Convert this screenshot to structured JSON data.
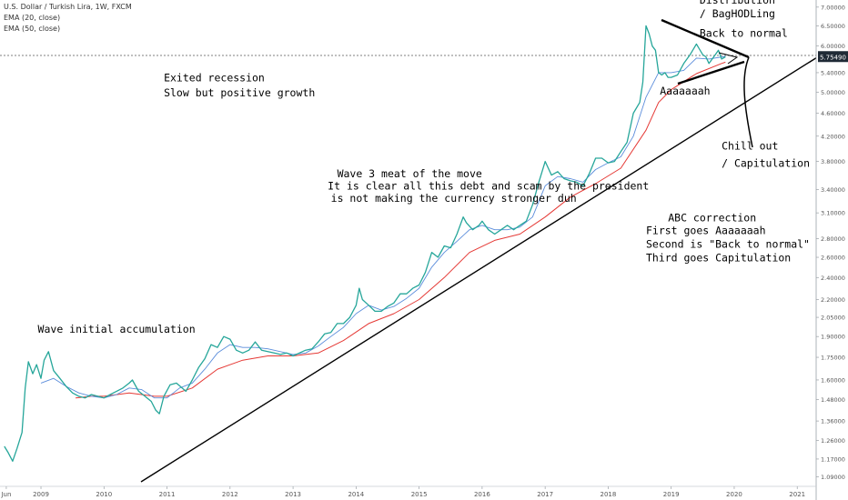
{
  "header": {
    "symbol": "U.S. Dollar / Turkish Lira, 1W, FXCM",
    "ema20": "EMA (20, close)",
    "ema50": "EMA (50, close)"
  },
  "colors": {
    "price": "#26a69a",
    "ema20": "#5b8ddb",
    "ema50": "#e53935",
    "trendline": "#000000",
    "annotation": "#000000"
  },
  "chart_data": {
    "type": "line",
    "title": "U.S. Dollar / Turkish Lira, 1W, FXCM",
    "y_scale": "log",
    "ylim": [
      1.05,
      7.2
    ],
    "xlim": [
      2008.35,
      2021.3
    ],
    "x_ticks": [
      {
        "x": 2008.45,
        "label": "Jun"
      },
      {
        "x": 2009.0,
        "label": "2009"
      },
      {
        "x": 2010.0,
        "label": "2010"
      },
      {
        "x": 2011.0,
        "label": "2011"
      },
      {
        "x": 2012.0,
        "label": "2012"
      },
      {
        "x": 2013.0,
        "label": "2013"
      },
      {
        "x": 2014.0,
        "label": "2014"
      },
      {
        "x": 2015.0,
        "label": "2015"
      },
      {
        "x": 2016.0,
        "label": "2016"
      },
      {
        "x": 2017.0,
        "label": "2017"
      },
      {
        "x": 2018.0,
        "label": "2018"
      },
      {
        "x": 2019.0,
        "label": "2019"
      },
      {
        "x": 2020.0,
        "label": "2020"
      },
      {
        "x": 2021.0,
        "label": "2021"
      }
    ],
    "y_ticks": [
      "7.00000",
      "6.50000",
      "6.00000",
      "5.75490",
      "5.40000",
      "5.00000",
      "4.60000",
      "4.20000",
      "3.80000",
      "3.40000",
      "3.10000",
      "2.80000",
      "2.60000",
      "2.40000",
      "2.20000",
      "2.05000",
      "1.90000",
      "1.75000",
      "1.60000",
      "1.48000",
      "1.36000",
      "1.26000",
      "1.17000",
      "1.09000"
    ],
    "last_price": "5.75490",
    "series": [
      {
        "name": "U.S. Dollar / Turkish Lira",
        "key": "price",
        "points": [
          [
            2008.42,
            1.23
          ],
          [
            2008.48,
            1.2
          ],
          [
            2008.55,
            1.16
          ],
          [
            2008.62,
            1.22
          ],
          [
            2008.7,
            1.3
          ],
          [
            2008.75,
            1.55
          ],
          [
            2008.8,
            1.72
          ],
          [
            2008.87,
            1.64
          ],
          [
            2008.93,
            1.7
          ],
          [
            2009.0,
            1.61
          ],
          [
            2009.05,
            1.73
          ],
          [
            2009.12,
            1.79
          ],
          [
            2009.2,
            1.66
          ],
          [
            2009.3,
            1.61
          ],
          [
            2009.4,
            1.56
          ],
          [
            2009.5,
            1.52
          ],
          [
            2009.6,
            1.5
          ],
          [
            2009.7,
            1.49
          ],
          [
            2009.8,
            1.51
          ],
          [
            2009.9,
            1.5
          ],
          [
            2010.0,
            1.49
          ],
          [
            2010.1,
            1.51
          ],
          [
            2010.2,
            1.53
          ],
          [
            2010.3,
            1.55
          ],
          [
            2010.4,
            1.58
          ],
          [
            2010.45,
            1.6
          ],
          [
            2010.55,
            1.53
          ],
          [
            2010.65,
            1.5
          ],
          [
            2010.75,
            1.47
          ],
          [
            2010.82,
            1.42
          ],
          [
            2010.88,
            1.4
          ],
          [
            2010.95,
            1.5
          ],
          [
            2011.05,
            1.57
          ],
          [
            2011.15,
            1.58
          ],
          [
            2011.3,
            1.53
          ],
          [
            2011.4,
            1.6
          ],
          [
            2011.5,
            1.68
          ],
          [
            2011.6,
            1.74
          ],
          [
            2011.7,
            1.84
          ],
          [
            2011.8,
            1.82
          ],
          [
            2011.9,
            1.9
          ],
          [
            2012.0,
            1.88
          ],
          [
            2012.1,
            1.8
          ],
          [
            2012.2,
            1.78
          ],
          [
            2012.3,
            1.8
          ],
          [
            2012.4,
            1.86
          ],
          [
            2012.5,
            1.8
          ],
          [
            2012.6,
            1.79
          ],
          [
            2012.7,
            1.78
          ],
          [
            2012.8,
            1.77
          ],
          [
            2012.9,
            1.78
          ],
          [
            2013.0,
            1.76
          ],
          [
            2013.1,
            1.78
          ],
          [
            2013.2,
            1.8
          ],
          [
            2013.3,
            1.81
          ],
          [
            2013.4,
            1.86
          ],
          [
            2013.5,
            1.92
          ],
          [
            2013.6,
            1.93
          ],
          [
            2013.7,
            2.0
          ],
          [
            2013.8,
            2.0
          ],
          [
            2013.9,
            2.05
          ],
          [
            2014.0,
            2.15
          ],
          [
            2014.05,
            2.3
          ],
          [
            2014.1,
            2.2
          ],
          [
            2014.2,
            2.15
          ],
          [
            2014.3,
            2.1
          ],
          [
            2014.4,
            2.1
          ],
          [
            2014.5,
            2.14
          ],
          [
            2014.6,
            2.17
          ],
          [
            2014.7,
            2.25
          ],
          [
            2014.8,
            2.25
          ],
          [
            2014.9,
            2.3
          ],
          [
            2015.0,
            2.33
          ],
          [
            2015.1,
            2.45
          ],
          [
            2015.2,
            2.65
          ],
          [
            2015.3,
            2.6
          ],
          [
            2015.4,
            2.72
          ],
          [
            2015.5,
            2.7
          ],
          [
            2015.6,
            2.85
          ],
          [
            2015.7,
            3.05
          ],
          [
            2015.75,
            2.98
          ],
          [
            2015.85,
            2.9
          ],
          [
            2015.95,
            2.95
          ],
          [
            2016.0,
            3.0
          ],
          [
            2016.1,
            2.9
          ],
          [
            2016.2,
            2.85
          ],
          [
            2016.3,
            2.9
          ],
          [
            2016.4,
            2.95
          ],
          [
            2016.5,
            2.9
          ],
          [
            2016.6,
            2.95
          ],
          [
            2016.7,
            3.0
          ],
          [
            2016.8,
            3.2
          ],
          [
            2016.9,
            3.5
          ],
          [
            2017.0,
            3.8
          ],
          [
            2017.05,
            3.7
          ],
          [
            2017.1,
            3.6
          ],
          [
            2017.2,
            3.65
          ],
          [
            2017.3,
            3.55
          ],
          [
            2017.4,
            3.52
          ],
          [
            2017.5,
            3.5
          ],
          [
            2017.6,
            3.45
          ],
          [
            2017.7,
            3.62
          ],
          [
            2017.8,
            3.85
          ],
          [
            2017.9,
            3.85
          ],
          [
            2018.0,
            3.78
          ],
          [
            2018.1,
            3.8
          ],
          [
            2018.2,
            3.95
          ],
          [
            2018.3,
            4.1
          ],
          [
            2018.4,
            4.6
          ],
          [
            2018.5,
            4.8
          ],
          [
            2018.55,
            5.2
          ],
          [
            2018.6,
            6.5
          ],
          [
            2018.65,
            6.3
          ],
          [
            2018.7,
            6.0
          ],
          [
            2018.75,
            5.9
          ],
          [
            2018.8,
            5.4
          ],
          [
            2018.85,
            5.35
          ],
          [
            2018.9,
            5.4
          ],
          [
            2018.95,
            5.3
          ],
          [
            2019.0,
            5.3
          ],
          [
            2019.1,
            5.35
          ],
          [
            2019.2,
            5.6
          ],
          [
            2019.3,
            5.8
          ],
          [
            2019.4,
            6.05
          ],
          [
            2019.5,
            5.8
          ],
          [
            2019.55,
            5.75
          ],
          [
            2019.6,
            5.6
          ],
          [
            2019.7,
            5.8
          ],
          [
            2019.75,
            5.9
          ],
          [
            2019.8,
            5.7
          ],
          [
            2019.86,
            5.75
          ]
        ]
      },
      {
        "name": "EMA (20, close)",
        "key": "ema20",
        "points": [
          [
            2009.0,
            1.58
          ],
          [
            2009.2,
            1.61
          ],
          [
            2009.4,
            1.56
          ],
          [
            2009.6,
            1.52
          ],
          [
            2009.8,
            1.5
          ],
          [
            2010.0,
            1.49
          ],
          [
            2010.2,
            1.51
          ],
          [
            2010.4,
            1.55
          ],
          [
            2010.6,
            1.54
          ],
          [
            2010.8,
            1.49
          ],
          [
            2011.0,
            1.49
          ],
          [
            2011.2,
            1.55
          ],
          [
            2011.4,
            1.58
          ],
          [
            2011.6,
            1.67
          ],
          [
            2011.8,
            1.78
          ],
          [
            2012.0,
            1.84
          ],
          [
            2012.2,
            1.82
          ],
          [
            2012.4,
            1.82
          ],
          [
            2012.6,
            1.81
          ],
          [
            2012.8,
            1.79
          ],
          [
            2013.0,
            1.77
          ],
          [
            2013.2,
            1.78
          ],
          [
            2013.4,
            1.83
          ],
          [
            2013.6,
            1.9
          ],
          [
            2013.8,
            1.97
          ],
          [
            2014.0,
            2.08
          ],
          [
            2014.2,
            2.15
          ],
          [
            2014.4,
            2.11
          ],
          [
            2014.6,
            2.14
          ],
          [
            2014.8,
            2.21
          ],
          [
            2015.0,
            2.3
          ],
          [
            2015.2,
            2.5
          ],
          [
            2015.4,
            2.65
          ],
          [
            2015.6,
            2.77
          ],
          [
            2015.8,
            2.9
          ],
          [
            2016.0,
            2.95
          ],
          [
            2016.2,
            2.9
          ],
          [
            2016.4,
            2.9
          ],
          [
            2016.6,
            2.93
          ],
          [
            2016.8,
            3.05
          ],
          [
            2017.0,
            3.45
          ],
          [
            2017.2,
            3.58
          ],
          [
            2017.4,
            3.55
          ],
          [
            2017.6,
            3.5
          ],
          [
            2017.8,
            3.68
          ],
          [
            2018.0,
            3.78
          ],
          [
            2018.2,
            3.87
          ],
          [
            2018.4,
            4.2
          ],
          [
            2018.6,
            4.9
          ],
          [
            2018.8,
            5.4
          ],
          [
            2019.0,
            5.4
          ],
          [
            2019.2,
            5.45
          ],
          [
            2019.4,
            5.72
          ],
          [
            2019.6,
            5.7
          ],
          [
            2019.86,
            5.76
          ]
        ]
      },
      {
        "name": "EMA (50, close)",
        "key": "ema50",
        "points": [
          [
            2009.55,
            1.49
          ],
          [
            2009.8,
            1.5
          ],
          [
            2010.0,
            1.5
          ],
          [
            2010.4,
            1.52
          ],
          [
            2010.8,
            1.5
          ],
          [
            2011.0,
            1.5
          ],
          [
            2011.4,
            1.55
          ],
          [
            2011.8,
            1.67
          ],
          [
            2012.2,
            1.73
          ],
          [
            2012.6,
            1.76
          ],
          [
            2013.0,
            1.76
          ],
          [
            2013.4,
            1.78
          ],
          [
            2013.8,
            1.87
          ],
          [
            2014.2,
            2.0
          ],
          [
            2014.6,
            2.08
          ],
          [
            2015.0,
            2.2
          ],
          [
            2015.4,
            2.4
          ],
          [
            2015.8,
            2.65
          ],
          [
            2016.2,
            2.78
          ],
          [
            2016.6,
            2.85
          ],
          [
            2017.0,
            3.05
          ],
          [
            2017.4,
            3.3
          ],
          [
            2017.8,
            3.48
          ],
          [
            2018.2,
            3.7
          ],
          [
            2018.6,
            4.3
          ],
          [
            2018.8,
            4.8
          ],
          [
            2019.0,
            5.05
          ],
          [
            2019.4,
            5.38
          ],
          [
            2019.8,
            5.6
          ],
          [
            2019.86,
            5.63
          ]
        ]
      }
    ],
    "annotations": [
      {
        "text": "Wave initial accumulation",
        "at": [
          2008.95,
          1.93
        ]
      },
      {
        "text": "Exited recession",
        "at": [
          2010.95,
          5.22
        ]
      },
      {
        "text": "Slow but positive growth",
        "at": [
          2010.95,
          4.92
        ]
      },
      {
        "text": "Wave 3 meat of the move",
        "at": [
          2013.7,
          3.57
        ]
      },
      {
        "text": "It is clear all this debt and scam by the president",
        "at": [
          2013.55,
          3.4
        ]
      },
      {
        "text": "is not making the currency stronger duh",
        "at": [
          2013.6,
          3.24
        ]
      },
      {
        "text": "Distribution",
        "at": [
          2019.45,
          7.1
        ]
      },
      {
        "text": "/ BagHODLing",
        "at": [
          2019.45,
          6.72
        ]
      },
      {
        "text": "Back to normal",
        "at": [
          2019.45,
          6.22
        ]
      },
      {
        "text": "Aaaaaaah",
        "at": [
          2018.82,
          4.95
        ]
      },
      {
        "text": "Chill out",
        "at": [
          2019.8,
          3.98
        ]
      },
      {
        "text": "/ Capitulation",
        "at": [
          2019.8,
          3.72
        ]
      },
      {
        "text": "ABC correction",
        "at": [
          2018.95,
          3.0
        ]
      },
      {
        "text": "First goes Aaaaaaah",
        "at": [
          2018.6,
          2.85
        ]
      },
      {
        "text": "Second is \"Back to normal\"",
        "at": [
          2018.6,
          2.7
        ]
      },
      {
        "text": "Third goes Capitulation",
        "at": [
          2018.6,
          2.56
        ]
      }
    ]
  }
}
